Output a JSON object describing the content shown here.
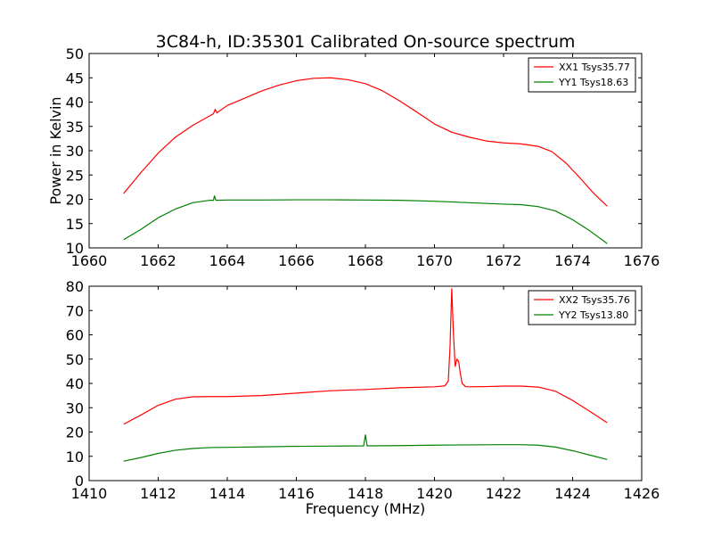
{
  "title": "3C84-h, ID:35301 Calibrated On-source spectrum",
  "chart_data": [
    {
      "type": "line",
      "title": "3C84-h, ID:35301 Calibrated On-source spectrum",
      "xlabel": "",
      "ylabel": "Power in Kelvin",
      "xlim": [
        1660,
        1676
      ],
      "ylim": [
        10,
        50
      ],
      "xticks": [
        "1660",
        "1662",
        "1664",
        "1666",
        "1668",
        "1670",
        "1672",
        "1674",
        "1676"
      ],
      "yticks": [
        "10",
        "15",
        "20",
        "25",
        "30",
        "35",
        "40",
        "45",
        "50"
      ],
      "legend_position": "top-right",
      "series": [
        {
          "name": "XX1 Tsys35.77",
          "color": "#ff0000",
          "x": [
            1661.0,
            1661.5,
            1662.0,
            1662.5,
            1663.0,
            1663.5,
            1663.6,
            1663.65,
            1663.7,
            1664.0,
            1664.5,
            1665.0,
            1665.5,
            1666.0,
            1666.5,
            1667.0,
            1667.5,
            1668.0,
            1668.5,
            1669.0,
            1669.5,
            1670.0,
            1670.5,
            1671.0,
            1671.5,
            1672.0,
            1672.5,
            1673.0,
            1673.4,
            1673.8,
            1674.2,
            1674.6,
            1675.0
          ],
          "y": [
            21.2,
            25.5,
            29.5,
            32.8,
            35.2,
            37.2,
            37.6,
            38.5,
            37.8,
            39.3,
            40.8,
            42.3,
            43.5,
            44.4,
            44.9,
            45.0,
            44.6,
            43.8,
            42.3,
            40.2,
            37.9,
            35.5,
            33.8,
            32.8,
            32.0,
            31.6,
            31.4,
            30.9,
            29.8,
            27.5,
            24.5,
            21.3,
            18.6
          ]
        },
        {
          "name": "YY1 Tsys18.63",
          "color": "#008000",
          "x": [
            1661.0,
            1661.5,
            1662.0,
            1662.5,
            1663.0,
            1663.5,
            1663.6,
            1663.63,
            1663.67,
            1664.0,
            1665.0,
            1666.0,
            1667.0,
            1668.0,
            1669.0,
            1670.0,
            1671.0,
            1672.0,
            1672.5,
            1673.0,
            1673.5,
            1674.0,
            1674.5,
            1675.0
          ],
          "y": [
            11.7,
            13.8,
            16.2,
            18.0,
            19.3,
            19.8,
            19.8,
            20.7,
            19.8,
            19.85,
            19.85,
            19.9,
            19.9,
            19.85,
            19.8,
            19.6,
            19.3,
            19.0,
            18.9,
            18.5,
            17.6,
            15.8,
            13.5,
            10.9
          ]
        }
      ]
    },
    {
      "type": "line",
      "title": "",
      "xlabel": "Frequency (MHz)",
      "ylabel": "",
      "xlim": [
        1410,
        1426
      ],
      "ylim": [
        0,
        80
      ],
      "xticks": [
        "1410",
        "1412",
        "1414",
        "1416",
        "1418",
        "1420",
        "1422",
        "1424",
        "1426"
      ],
      "yticks": [
        "0",
        "10",
        "20",
        "30",
        "40",
        "50",
        "60",
        "70",
        "80"
      ],
      "legend_position": "top-right",
      "series": [
        {
          "name": "XX2 Tsys35.76",
          "color": "#ff0000",
          "x": [
            1411.0,
            1411.5,
            1412.0,
            1412.5,
            1413.0,
            1413.5,
            1414.0,
            1415.0,
            1416.0,
            1417.0,
            1418.0,
            1419.0,
            1420.0,
            1420.3,
            1420.4,
            1420.45,
            1420.5,
            1420.55,
            1420.6,
            1420.65,
            1420.7,
            1420.75,
            1420.8,
            1420.9,
            1421.0,
            1421.5,
            1422.0,
            1422.5,
            1423.0,
            1423.5,
            1424.0,
            1424.5,
            1425.0
          ],
          "y": [
            23.2,
            27.0,
            31.0,
            33.5,
            34.5,
            34.6,
            34.6,
            35.0,
            36.0,
            37.0,
            37.5,
            38.2,
            38.6,
            39.0,
            41.0,
            55.0,
            79.0,
            60.0,
            47.0,
            50.0,
            49.0,
            44.0,
            40.0,
            38.7,
            38.6,
            38.7,
            38.9,
            38.9,
            38.5,
            36.8,
            33.0,
            28.5,
            23.8
          ]
        },
        {
          "name": "YY2 Tsys13.80",
          "color": "#008000",
          "x": [
            1411.0,
            1411.5,
            1412.0,
            1412.5,
            1413.0,
            1413.5,
            1414.0,
            1415.0,
            1416.0,
            1417.0,
            1417.95,
            1418.0,
            1418.05,
            1418.1,
            1419.0,
            1420.0,
            1421.0,
            1422.0,
            1422.5,
            1423.0,
            1423.5,
            1424.0,
            1424.5,
            1425.0
          ],
          "y": [
            8.0,
            9.5,
            11.2,
            12.5,
            13.2,
            13.6,
            13.7,
            13.9,
            14.1,
            14.2,
            14.3,
            18.8,
            14.3,
            14.3,
            14.4,
            14.6,
            14.7,
            14.8,
            14.8,
            14.6,
            13.8,
            12.3,
            10.5,
            8.7
          ]
        }
      ]
    }
  ]
}
